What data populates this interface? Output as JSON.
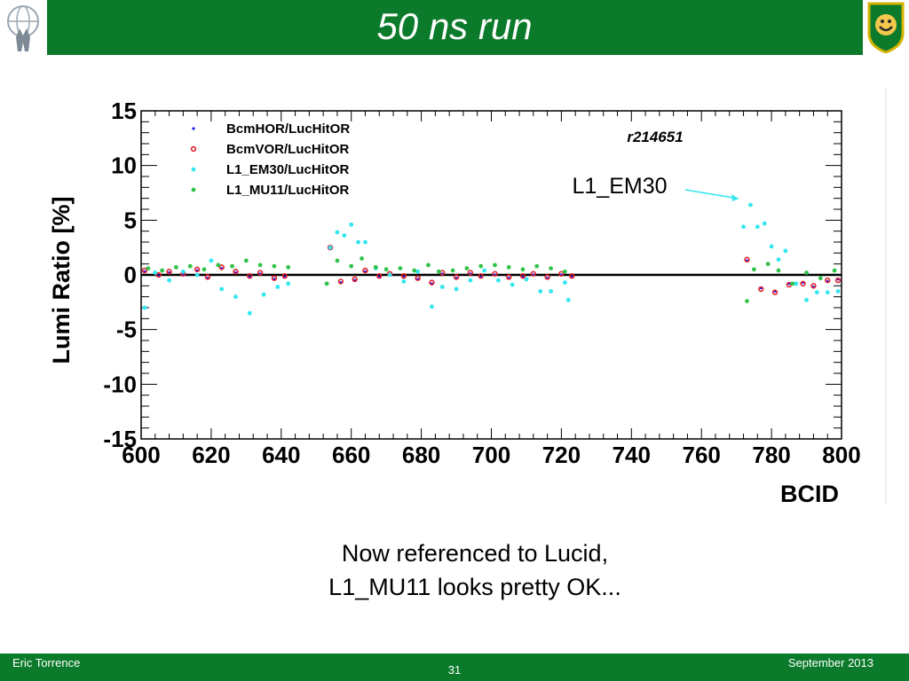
{
  "slide": {
    "title": "50 ns run",
    "caption_line1": "Now referenced to Lucid,",
    "caption_line2": "L1_MU11 looks pretty OK...",
    "footer_left": "Eric Torrence",
    "footer_center": "31",
    "footer_right": "September 2013"
  },
  "colors": {
    "bar": "#0b7a2a",
    "bcmhor": "#1a1aff",
    "bcmvor": "#e0202a",
    "em30": "#33e6f0",
    "mu11": "#33c24a"
  },
  "chart_data": {
    "type": "scatter",
    "title": "r214651",
    "xlabel": "BCID",
    "ylabel": "Lumi Ratio [%]",
    "xlim": [
      600,
      800
    ],
    "ylim": [
      -15,
      15
    ],
    "xticks": [
      "600",
      "620",
      "640",
      "660",
      "680",
      "700",
      "720",
      "740",
      "760",
      "780",
      "800"
    ],
    "yticks": [
      "15",
      "10",
      "5",
      "0",
      "-5",
      "-10",
      "-15"
    ],
    "grid": false,
    "legend_position": "top-left",
    "annotation": "L1_EM30",
    "series": [
      {
        "name": "BcmHOR/LucHitOR",
        "color_key": "bcmhor",
        "x": [
          601,
          605,
          608,
          612,
          616,
          619,
          623,
          627,
          631,
          634,
          638,
          641,
          654,
          657,
          661,
          664,
          668,
          671,
          675,
          679,
          683,
          686,
          690,
          694,
          697,
          701,
          705,
          709,
          712,
          716,
          720,
          723,
          773,
          777,
          781,
          785,
          789,
          792,
          796,
          799
        ],
        "y": [
          0.3,
          -0.1,
          0.2,
          0.0,
          0.4,
          -0.3,
          0.6,
          0.2,
          -0.2,
          0.1,
          -0.4,
          -0.2,
          2.4,
          -0.7,
          -0.5,
          0.3,
          -0.2,
          0.0,
          -0.2,
          -0.4,
          -0.8,
          0.1,
          -0.3,
          0.1,
          -0.2,
          0.0,
          -0.3,
          -0.2,
          0.0,
          -0.3,
          0.0,
          -0.2,
          1.3,
          -1.2,
          -1.5,
          -0.8,
          -0.7,
          -1.1,
          -0.6,
          -0.4
        ]
      },
      {
        "name": "BcmVOR/LucHitOR",
        "color_key": "bcmvor",
        "x": [
          601,
          605,
          608,
          612,
          616,
          619,
          623,
          627,
          631,
          634,
          638,
          641,
          654,
          657,
          661,
          664,
          668,
          671,
          675,
          679,
          683,
          686,
          690,
          694,
          697,
          701,
          705,
          709,
          712,
          716,
          720,
          723,
          773,
          777,
          781,
          785,
          789,
          792,
          796,
          799
        ],
        "y": [
          0.4,
          0.0,
          0.3,
          0.1,
          0.5,
          -0.2,
          0.7,
          0.3,
          -0.1,
          0.2,
          -0.3,
          -0.1,
          2.5,
          -0.6,
          -0.4,
          0.4,
          -0.1,
          0.1,
          -0.1,
          -0.3,
          -0.7,
          0.2,
          -0.2,
          0.2,
          -0.1,
          0.1,
          -0.2,
          -0.1,
          0.1,
          -0.2,
          0.1,
          -0.1,
          1.4,
          -1.3,
          -1.6,
          -0.9,
          -0.8,
          -1.0,
          -0.5,
          -0.5
        ]
      },
      {
        "name": "L1_EM30/LucHitOR",
        "color_key": "em30",
        "x": [
          601,
          604,
          608,
          612,
          616,
          620,
          623,
          627,
          631,
          635,
          639,
          642,
          654,
          656,
          658,
          660,
          662,
          664,
          667,
          671,
          675,
          679,
          683,
          686,
          690,
          694,
          698,
          702,
          706,
          710,
          714,
          717,
          721,
          722,
          772,
          774,
          776,
          778,
          780,
          782,
          784,
          787,
          790,
          793,
          796,
          799
        ],
        "y": [
          -3.0,
          0.2,
          -0.5,
          0.3,
          0.0,
          1.3,
          -1.3,
          -2.0,
          -3.5,
          -1.8,
          -1.1,
          -0.8,
          2.5,
          3.9,
          3.6,
          4.6,
          3.0,
          3.0,
          0.6,
          0.0,
          -0.6,
          0.3,
          -2.9,
          -1.1,
          -1.3,
          -0.5,
          0.4,
          -0.5,
          -0.9,
          -0.4,
          -1.5,
          -1.5,
          -0.7,
          -2.3,
          4.4,
          6.4,
          4.4,
          4.7,
          2.6,
          1.4,
          2.2,
          -0.8,
          -2.3,
          -1.6,
          -1.6,
          -1.5
        ]
      },
      {
        "name": "L1_MU11/LucHitOR",
        "color_key": "mu11",
        "x": [
          602,
          606,
          610,
          614,
          618,
          622,
          626,
          630,
          634,
          638,
          642,
          653,
          656,
          660,
          663,
          667,
          670,
          674,
          678,
          682,
          685,
          689,
          693,
          697,
          701,
          705,
          709,
          713,
          717,
          721,
          773,
          775,
          779,
          782,
          786,
          790,
          794,
          798
        ],
        "y": [
          0.6,
          0.4,
          0.7,
          0.8,
          0.5,
          0.9,
          0.8,
          1.3,
          0.9,
          0.8,
          0.7,
          -0.8,
          1.3,
          0.8,
          1.5,
          0.7,
          0.5,
          0.6,
          0.4,
          0.9,
          0.3,
          0.4,
          0.6,
          0.8,
          0.9,
          0.7,
          0.5,
          0.8,
          0.6,
          0.3,
          -2.4,
          0.5,
          1.0,
          0.4,
          -0.8,
          0.2,
          -0.3,
          0.4
        ]
      }
    ]
  }
}
